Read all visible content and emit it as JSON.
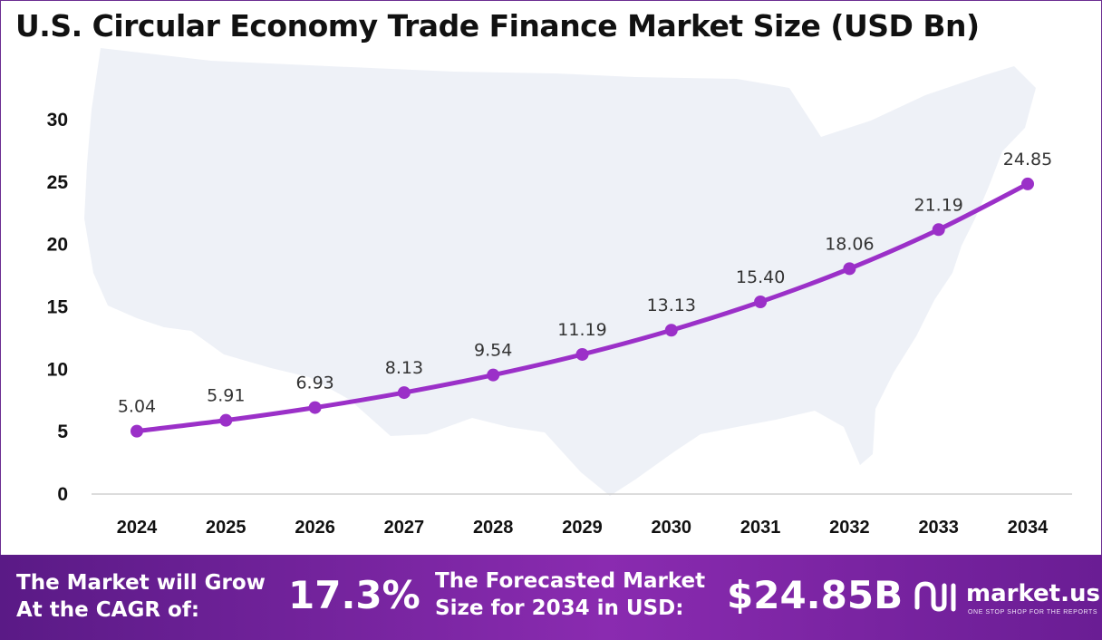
{
  "chart_data": {
    "type": "line",
    "title": "U.S. Circular Economy Trade Finance Market Size (USD Bn)",
    "categories": [
      "2024",
      "2025",
      "2026",
      "2027",
      "2028",
      "2029",
      "2030",
      "2031",
      "2032",
      "2033",
      "2034"
    ],
    "series": [
      {
        "values": [
          5.04,
          5.91,
          6.93,
          8.13,
          9.54,
          11.19,
          13.13,
          15.4,
          18.06,
          21.19,
          24.85
        ]
      }
    ],
    "data_labels": [
      "5.04",
      "5.91",
      "6.93",
      "8.13",
      "9.54",
      "11.19",
      "13.13",
      "15.40",
      "18.06",
      "21.19",
      "24.85"
    ],
    "yticks": [
      0,
      5,
      10,
      15,
      20,
      25,
      30
    ],
    "ylim": [
      0,
      30
    ],
    "xlabel": "",
    "ylabel": "",
    "grid": false,
    "line_color": "#9b30c8"
  },
  "footer": {
    "cagr_text_line1": "The Market will Grow",
    "cagr_text_line2": "At the CAGR of:",
    "cagr_value": "17.3%",
    "forecast_text_line1": "The Forecasted Market",
    "forecast_text_line2": "Size for 2034 in USD:",
    "forecast_value": "$24.85B",
    "brand_name": "market.us",
    "brand_tagline": "ONE STOP SHOP FOR THE REPORTS"
  },
  "colors": {
    "footer_start": "#5a1a86",
    "footer_end": "#8a2bb0",
    "line": "#9b30c8",
    "marker": "#9b30c8"
  }
}
